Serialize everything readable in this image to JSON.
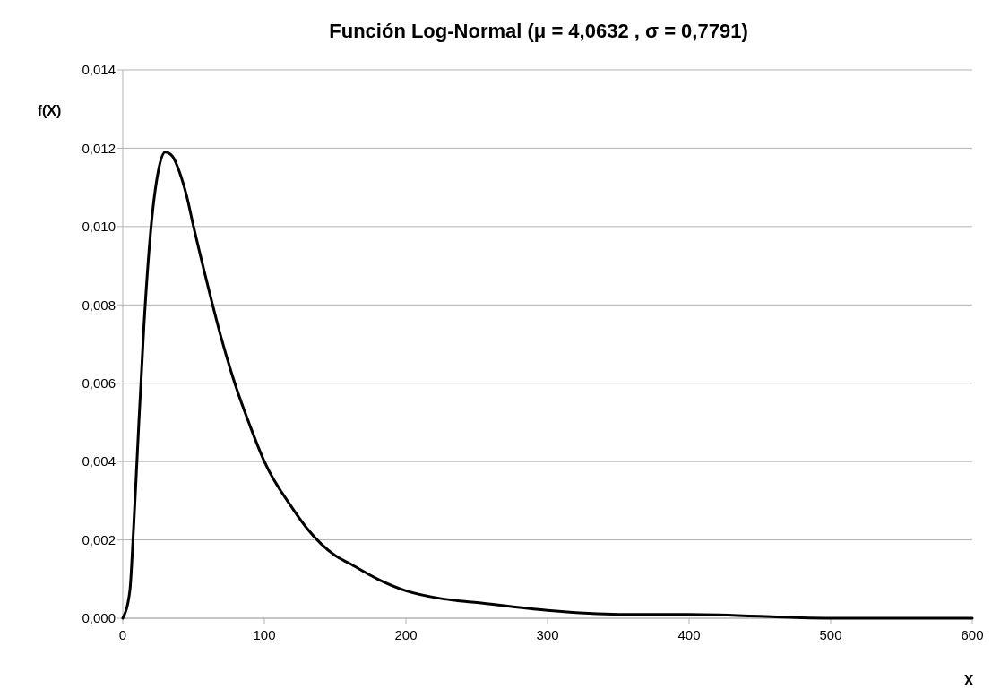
{
  "chart_data": {
    "type": "line",
    "title": "Función Log-Normal (μ = 4,0632 , σ = 0,7791)",
    "xlabel": "X",
    "ylabel": "f(X)",
    "x": [
      0,
      5,
      7.5,
      10,
      15,
      20,
      25,
      30,
      35,
      40,
      45,
      50,
      60,
      70,
      80,
      90,
      100,
      120,
      130,
      140,
      150,
      160,
      180,
      200,
      225,
      250,
      300,
      350,
      400,
      500,
      600
    ],
    "series": [
      {
        "color": "#000000",
        "values": [
          0,
          0.0007,
          0.0022,
          0.004,
          0.0075,
          0.01,
          0.0114,
          0.0119,
          0.0118,
          0.0114,
          0.0108,
          0.01,
          0.0085,
          0.0071,
          0.0059,
          0.0049,
          0.004,
          0.0028,
          0.0023,
          0.0019,
          0.0016,
          0.0014,
          0.001,
          0.0007,
          0.0005,
          0.0004,
          0.0002,
          0.0001,
          0.0001,
          0,
          0
        ]
      }
    ],
    "xlim": [
      0,
      600
    ],
    "xticks": [
      0,
      100,
      200,
      300,
      400,
      500,
      600
    ],
    "ylim": [
      0,
      0.014
    ],
    "yticks": [
      {
        "value": 0,
        "label": "0,000"
      },
      {
        "value": 0.002,
        "label": "0,002"
      },
      {
        "value": 0.004,
        "label": "0,004"
      },
      {
        "value": 0.006,
        "label": "0,006"
      },
      {
        "value": 0.008,
        "label": "0,008"
      },
      {
        "value": 0.01,
        "label": "0,010"
      },
      {
        "value": 0.012,
        "label": "0,012"
      },
      {
        "value": 0.014,
        "label": "0,014"
      }
    ],
    "grid": "y",
    "marker": "none",
    "line_style": "solid"
  }
}
